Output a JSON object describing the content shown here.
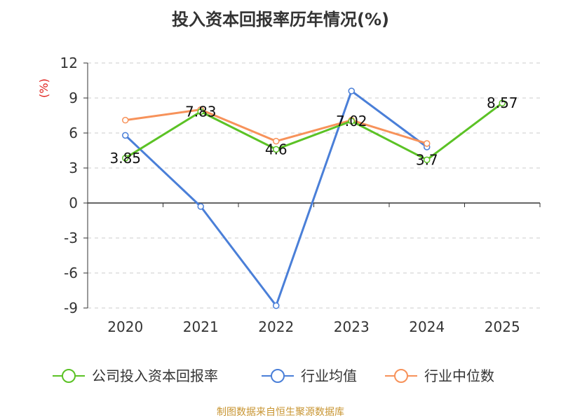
{
  "title": "投入资本回报率历年情况(%)",
  "footer": "制图数据来自恒生聚源数据库",
  "chart_data": {
    "type": "line",
    "title": "投入资本回报率历年情况(%)",
    "ylabel": "(%)",
    "xlabel": "",
    "categories": [
      "2020",
      "2021",
      "2022",
      "2023",
      "2024",
      "2025"
    ],
    "ylim": [
      -9,
      12
    ],
    "yticks": [
      12,
      9,
      6,
      3,
      0,
      -3,
      -6,
      -9
    ],
    "grid": true,
    "legend_position": "bottom",
    "series": [
      {
        "name": "公司投入资本回报率",
        "color": "#5bc225",
        "values": [
          3.85,
          7.83,
          4.6,
          7.02,
          3.7,
          8.57
        ],
        "labels": [
          "3.85",
          "7.83",
          "4.6",
          "7.02",
          "3.7",
          "8.57"
        ]
      },
      {
        "name": "行业均值",
        "color": "#4a7fd8",
        "values": [
          5.8,
          -0.3,
          -8.8,
          9.6,
          4.8,
          null
        ]
      },
      {
        "name": "行业中位数",
        "color": "#f7925a",
        "values": [
          7.1,
          8.0,
          5.3,
          7.1,
          5.1,
          null
        ]
      }
    ]
  }
}
